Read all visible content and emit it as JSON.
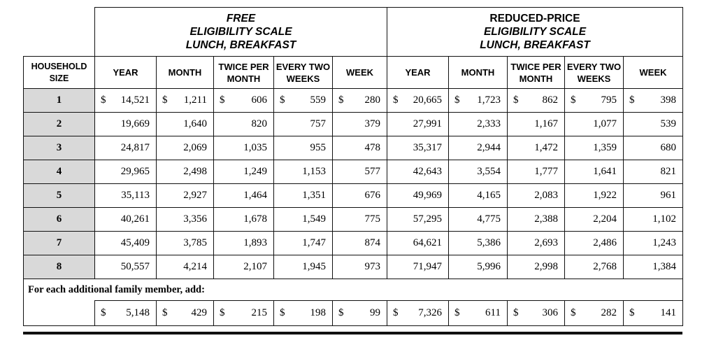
{
  "groups": [
    {
      "line1": "FREE",
      "line2": "ELIGIBILITY SCALE",
      "line3": "LUNCH, BREAKFAST"
    },
    {
      "line1": "REDUCED-PRICE",
      "line2": "ELIGIBILITY SCALE",
      "line3": "LUNCH, BREAKFAST"
    }
  ],
  "household_header": {
    "line1": "HOUSEHOLD",
    "line2": "SIZE"
  },
  "columns": [
    {
      "l1": "YEAR",
      "l2": ""
    },
    {
      "l1": "MONTH",
      "l2": ""
    },
    {
      "l1": "TWICE PER",
      "l2": "MONTH"
    },
    {
      "l1": "EVERY TWO",
      "l2": "WEEKS"
    },
    {
      "l1": "WEEK",
      "l2": ""
    }
  ],
  "rows": [
    {
      "size": "1",
      "free": [
        "$ 14,521",
        "$ 1,211",
        "$ 606",
        "$ 559",
        "$ 280"
      ],
      "reduced": [
        "$ 20,665",
        "$ 1,723",
        "$ 862",
        "$ 795",
        "$ 398"
      ]
    },
    {
      "size": "2",
      "free": [
        "19,669",
        "1,640",
        "820",
        "757",
        "379"
      ],
      "reduced": [
        "27,991",
        "2,333",
        "1,167",
        "1,077",
        "539"
      ]
    },
    {
      "size": "3",
      "free": [
        "24,817",
        "2,069",
        "1,035",
        "955",
        "478"
      ],
      "reduced": [
        "35,317",
        "2,944",
        "1,472",
        "1,359",
        "680"
      ]
    },
    {
      "size": "4",
      "free": [
        "29,965",
        "2,498",
        "1,249",
        "1,153",
        "577"
      ],
      "reduced": [
        "42,643",
        "3,554",
        "1,777",
        "1,641",
        "821"
      ]
    },
    {
      "size": "5",
      "free": [
        "35,113",
        "2,927",
        "1,464",
        "1,351",
        "676"
      ],
      "reduced": [
        "49,969",
        "4,165",
        "2,083",
        "1,922",
        "961"
      ]
    },
    {
      "size": "6",
      "free": [
        "40,261",
        "3,356",
        "1,678",
        "1,549",
        "775"
      ],
      "reduced": [
        "57,295",
        "4,775",
        "2,388",
        "2,204",
        "1,102"
      ]
    },
    {
      "size": "7",
      "free": [
        "45,409",
        "3,785",
        "1,893",
        "1,747",
        "874"
      ],
      "reduced": [
        "64,621",
        "5,386",
        "2,693",
        "2,486",
        "1,243"
      ]
    },
    {
      "size": "8",
      "free": [
        "50,557",
        "4,214",
        "2,107",
        "1,945",
        "973"
      ],
      "reduced": [
        "71,947",
        "5,996",
        "2,998",
        "2,768",
        "1,384"
      ]
    }
  ],
  "additional": {
    "label": "For each additional family member, add:",
    "free": [
      "$ 5,148",
      "$ 429",
      "$ 215",
      "$ 198",
      "$ 99"
    ],
    "reduced": [
      "$ 7,326",
      "$ 611",
      "$ 306",
      "$ 282",
      "$ 141"
    ]
  }
}
